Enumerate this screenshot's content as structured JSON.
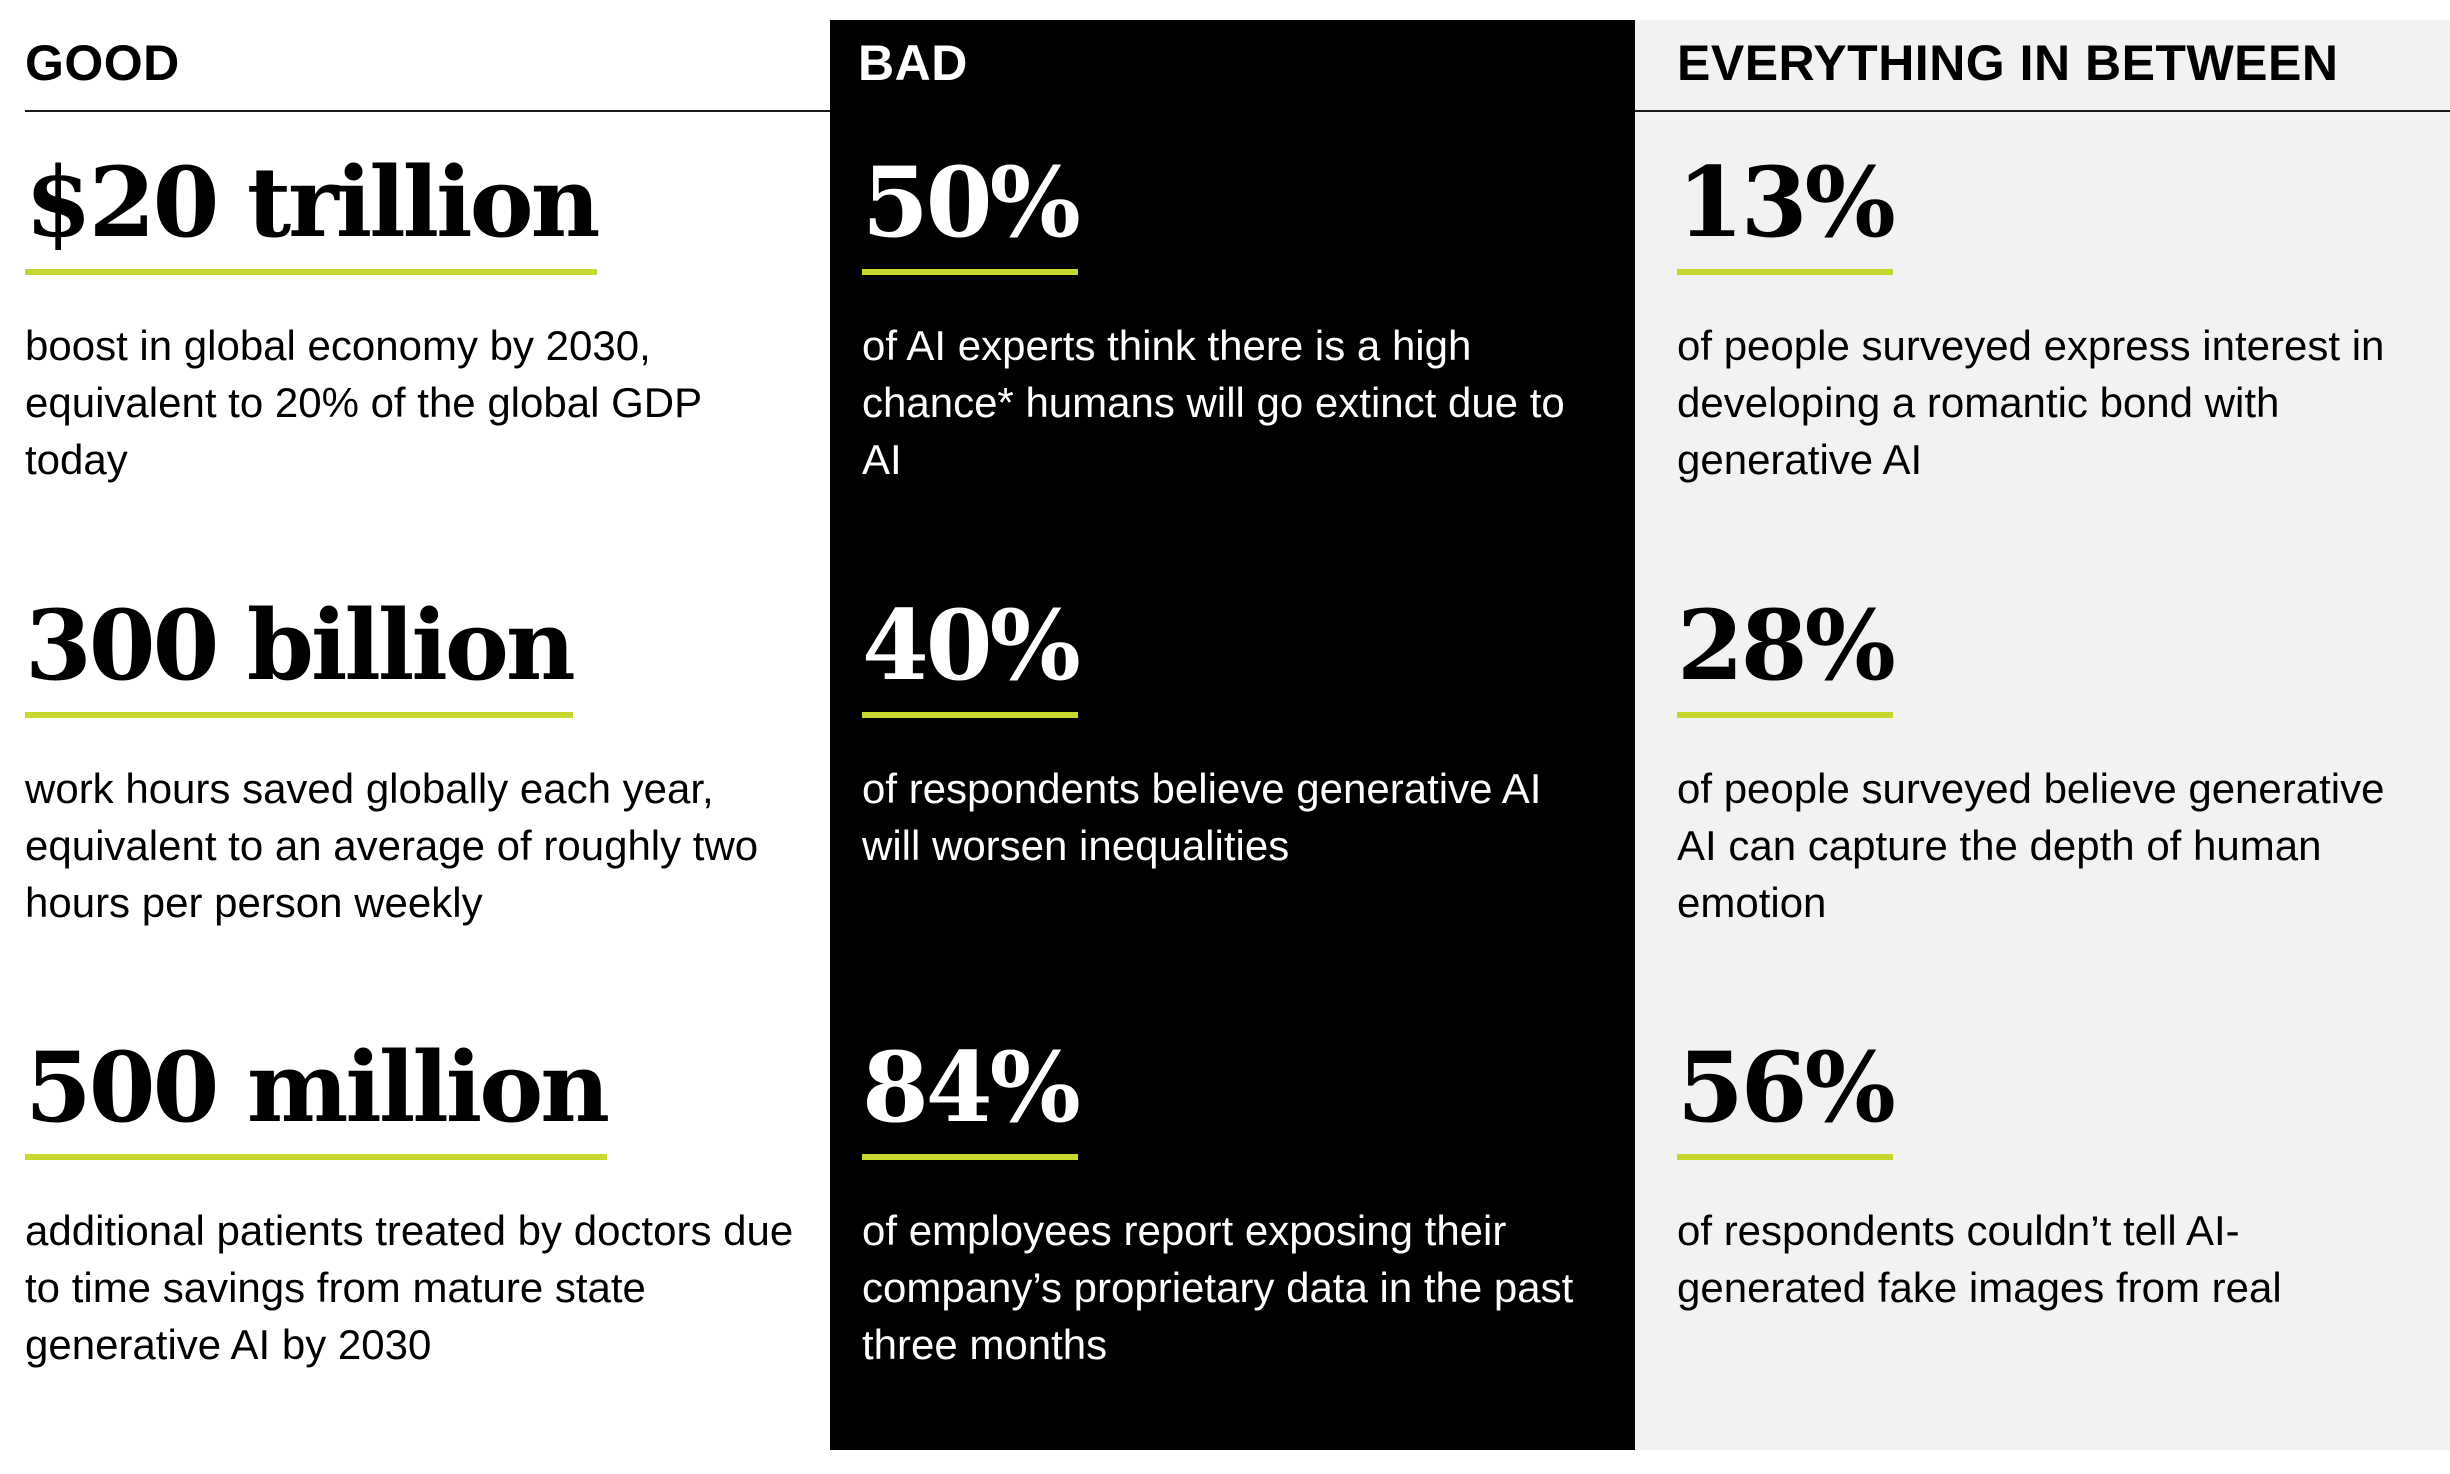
{
  "columns": {
    "good": {
      "header": "GOOD",
      "stats": [
        {
          "value": "$20 trillion",
          "description": "boost in global economy by 2030, equivalent to 20% of the global GDP today"
        },
        {
          "value": "300 billion",
          "description": "work hours saved globally each year, equivalent to an average of roughly two hours per person weekly"
        },
        {
          "value": "500 million",
          "description": "additional patients treated by doctors due to time savings from mature state generative AI by 2030"
        }
      ]
    },
    "bad": {
      "header": "BAD",
      "stats": [
        {
          "value": "50%",
          "description": "of AI experts think there is a high chance* humans will go extinct due to AI"
        },
        {
          "value": "40%",
          "description": "of respondents believe generative AI will worsen inequalities"
        },
        {
          "value": "84%",
          "description": "of employees report exposing their company’s proprietary data in the past three months"
        }
      ]
    },
    "between": {
      "header": "EVERYTHING IN BETWEEN",
      "stats": [
        {
          "value": "13%",
          "description": "of people surveyed express interest in developing a romantic bond with generative AI"
        },
        {
          "value": "28%",
          "description": "of people surveyed believe generative AI can capture the depth of human emotion"
        },
        {
          "value": "56%",
          "description": "of respondents couldn’t tell AI-generated fake images from real"
        }
      ]
    }
  },
  "colors": {
    "accent_underline": "#c8d62f",
    "bad_background": "#000000",
    "between_background": "#f1f2f1",
    "good_background": "#ffffff"
  }
}
